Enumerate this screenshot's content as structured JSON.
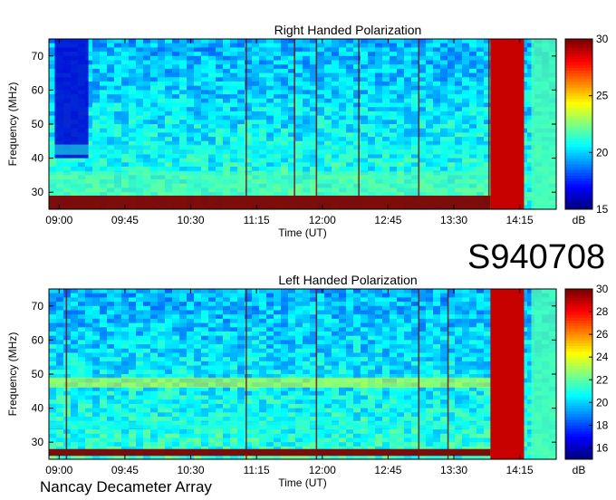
{
  "event_id": "S940708",
  "source_label": "Nancay Decameter Array",
  "chart_data": [
    {
      "type": "heatmap",
      "title": "Right Handed Polarization",
      "xlabel": "Time (UT)",
      "ylabel": "Frequency (MHz)",
      "x_ticks": [
        "09:00",
        "09:45",
        "10:30",
        "11:15",
        "12:00",
        "12:45",
        "13:30",
        "14:15"
      ],
      "x_tick_minutes": [
        540,
        585,
        630,
        675,
        720,
        765,
        810,
        855
      ],
      "xlim_minutes": [
        533,
        880
      ],
      "y_ticks": [
        30,
        40,
        50,
        60,
        70
      ],
      "ylim": [
        25,
        75
      ],
      "colorbar": {
        "unit": "dB",
        "min": 15,
        "max": 30,
        "ticks": [
          15,
          20,
          25,
          30
        ]
      },
      "emission_bands": [
        {
          "freq_from": 25,
          "freq_to": 29,
          "level": 30
        },
        {
          "freq_from": 29,
          "freq_to": 36,
          "level": 22
        },
        {
          "freq_from": 41,
          "freq_to": 44,
          "level": 21
        }
      ],
      "dark_segment_minutes": [
        537,
        560
      ],
      "saturated_segment_minutes": [
        835,
        858
      ],
      "vertical_lines_minutes": [
        668,
        701,
        716,
        745,
        786,
        834
      ]
    },
    {
      "type": "heatmap",
      "title": "Left Handed Polarization",
      "xlabel": "Time (UT)",
      "ylabel": "Frequency (MHz)",
      "x_ticks": [
        "09:00",
        "09:45",
        "10:30",
        "11:15",
        "12:00",
        "12:45",
        "13:30",
        "14:15"
      ],
      "x_tick_minutes": [
        540,
        585,
        630,
        675,
        720,
        765,
        810,
        855
      ],
      "xlim_minutes": [
        533,
        880
      ],
      "y_ticks": [
        30,
        40,
        50,
        60,
        70
      ],
      "ylim": [
        25,
        75
      ],
      "colorbar": {
        "unit": "dB",
        "min": 15,
        "max": 30,
        "ticks": [
          16,
          18,
          20,
          22,
          24,
          26,
          28,
          30
        ]
      },
      "emission_bands": [
        {
          "freq_from": 26,
          "freq_to": 28,
          "level": 30
        },
        {
          "freq_from": 46,
          "freq_to": 49,
          "level": 24
        },
        {
          "freq_from": 34,
          "freq_to": 36,
          "level": 21
        }
      ],
      "saturated_segment_minutes": [
        835,
        858
      ],
      "vertical_lines_minutes": [
        545,
        668,
        716,
        786,
        806
      ]
    }
  ]
}
